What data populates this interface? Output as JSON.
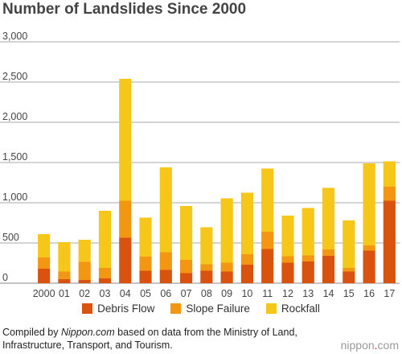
{
  "title": "Number of Landslides Since 2000",
  "chart_data": {
    "type": "bar",
    "stacked": true,
    "title": "Number of Landslides Since 2000",
    "categories": [
      "2000",
      "01",
      "02",
      "03",
      "04",
      "05",
      "06",
      "07",
      "08",
      "09",
      "10",
      "11",
      "12",
      "13",
      "14",
      "15",
      "16",
      "17"
    ],
    "ylim": [
      0,
      3000
    ],
    "yticks": [
      "0",
      "500",
      "1,000",
      "1,500",
      "2,000",
      "2,500",
      "3,000"
    ],
    "grid": true,
    "legend_position": "bottom",
    "series": [
      {
        "name": "Debris Flow",
        "color": "#d9530f",
        "values": [
          180,
          50,
          40,
          60,
          565,
          155,
          165,
          125,
          155,
          145,
          230,
          425,
          255,
          270,
          340,
          145,
          405,
          1025
        ]
      },
      {
        "name": "Slope Failure",
        "color": "#f39612",
        "values": [
          140,
          95,
          225,
          130,
          460,
          175,
          220,
          165,
          80,
          110,
          130,
          215,
          80,
          75,
          80,
          45,
          65,
          175
        ]
      },
      {
        "name": "Rockfall",
        "color": "#f6c619",
        "values": [
          290,
          365,
          275,
          710,
          1515,
          485,
          1055,
          670,
          460,
          800,
          765,
          785,
          505,
          590,
          765,
          590,
          1020,
          315
        ]
      }
    ]
  },
  "source": {
    "prefix": "Compiled by ",
    "site": "Nippon.com",
    "suffix": " based on data from the Ministry of Land, Infrastructure, Transport, and Tourism."
  },
  "brand": {
    "part1": "nippon",
    "dot": ".",
    "part2": "com"
  }
}
